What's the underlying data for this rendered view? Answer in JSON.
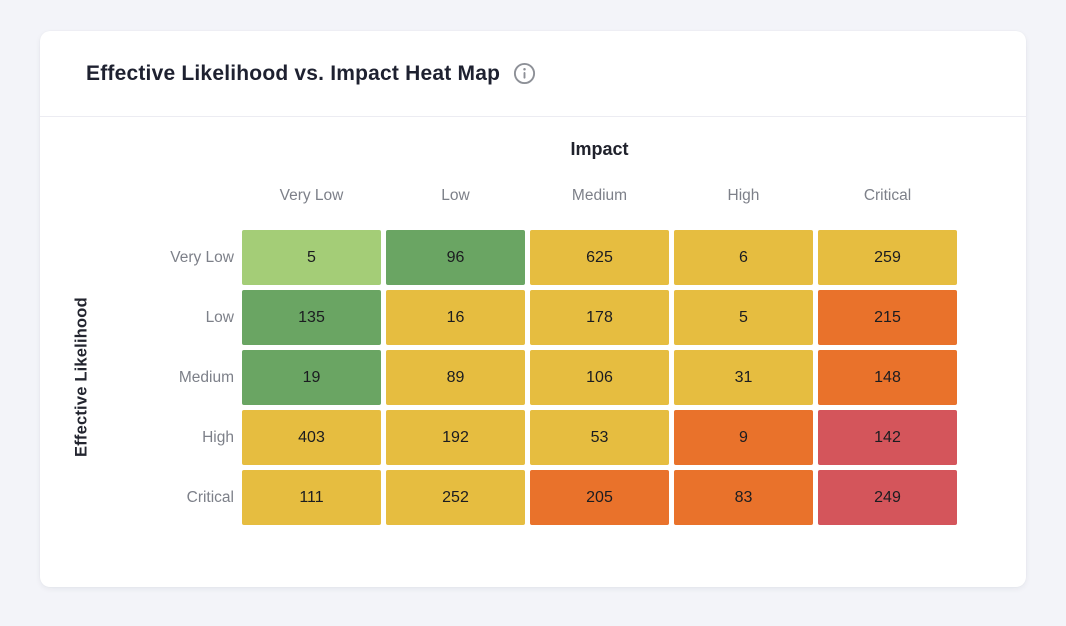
{
  "page": {
    "background_color": "#f3f4f9"
  },
  "card": {
    "title": "Effective Likelihood vs. Impact Heat Map"
  },
  "icons": {
    "info": "info-icon"
  },
  "chart_data": {
    "type": "heatmap",
    "title": "Effective Likelihood vs. Impact Heat Map",
    "xlabel": "Impact",
    "ylabel": "Effective Likelihood",
    "columns": [
      "Very Low",
      "Low",
      "Medium",
      "High",
      "Critical"
    ],
    "rows": [
      "Very Low",
      "Low",
      "Medium",
      "High",
      "Critical"
    ],
    "values": [
      [
        5,
        96,
        625,
        6,
        259
      ],
      [
        135,
        16,
        178,
        5,
        215
      ],
      [
        19,
        89,
        106,
        31,
        148
      ],
      [
        403,
        192,
        53,
        9,
        142
      ],
      [
        111,
        252,
        205,
        83,
        249
      ]
    ],
    "cell_colors": [
      [
        "light_green",
        "green",
        "yellow",
        "yellow",
        "yellow"
      ],
      [
        "green",
        "yellow",
        "yellow",
        "yellow",
        "orange"
      ],
      [
        "green",
        "yellow",
        "yellow",
        "yellow",
        "orange"
      ],
      [
        "yellow",
        "yellow",
        "yellow",
        "orange",
        "red"
      ],
      [
        "yellow",
        "yellow",
        "orange",
        "orange",
        "red"
      ]
    ],
    "palette": {
      "light_green": "#a4cd77",
      "green": "#6aa563",
      "yellow": "#e6bd40",
      "orange": "#e9722b",
      "red": "#d4555b"
    },
    "value_text_color": "#1b1c20",
    "legend": "none",
    "grid": "off"
  }
}
